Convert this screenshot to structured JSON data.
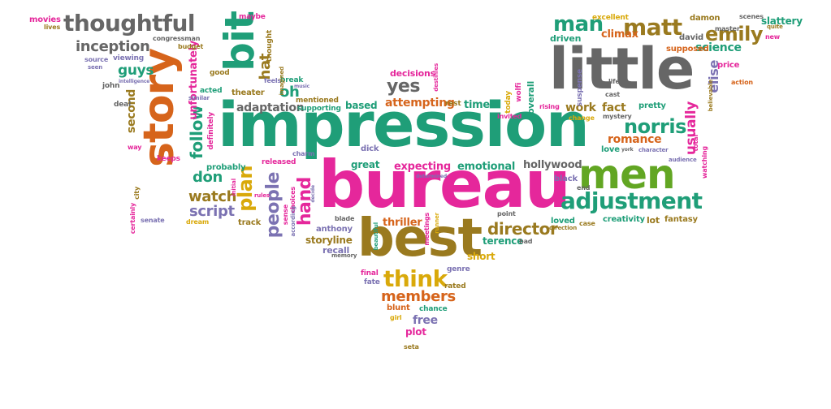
{
  "palette": {
    "green": "#1f9e78",
    "pink": "#e5279b",
    "orange": "#d6641b",
    "olive": "#9a7a1f",
    "gray": "#666666",
    "purple": "#7b72b2",
    "lime": "#62a623",
    "gold": "#d9a90a"
  },
  "words": [
    {
      "text": "impression",
      "color": "green"
    },
    {
      "text": "bureau",
      "color": "pink"
    },
    {
      "text": "little",
      "color": "gray"
    },
    {
      "text": "best",
      "color": "olive"
    },
    {
      "text": "story",
      "color": "orange"
    },
    {
      "text": "men",
      "color": "lime"
    },
    {
      "text": "bit",
      "color": "green"
    },
    {
      "text": "thoughtful",
      "color": "gray"
    },
    {
      "text": "adjustment",
      "color": "green"
    },
    {
      "text": "think",
      "color": "gold"
    },
    {
      "text": "matt",
      "color": "olive"
    },
    {
      "text": "norris",
      "color": "green"
    },
    {
      "text": "emily",
      "color": "olive"
    },
    {
      "text": "man",
      "color": "green"
    },
    {
      "text": "inception",
      "color": "gray"
    },
    {
      "text": "plan",
      "color": "gold"
    },
    {
      "text": "people",
      "color": "purple"
    },
    {
      "text": "hand",
      "color": "pink"
    },
    {
      "text": "yes",
      "color": "gray"
    },
    {
      "text": "director",
      "color": "olive"
    },
    {
      "text": "members",
      "color": "orange"
    },
    {
      "text": "follow",
      "color": "green"
    },
    {
      "text": "guys",
      "color": "green"
    },
    {
      "text": "watch",
      "color": "olive"
    },
    {
      "text": "script",
      "color": "purple"
    },
    {
      "text": "don",
      "color": "green"
    },
    {
      "text": "second",
      "color": "olive"
    },
    {
      "text": "unfortunately",
      "color": "pink"
    },
    {
      "text": "hat",
      "color": "olive"
    },
    {
      "text": "oh",
      "color": "green"
    },
    {
      "text": "adaptation",
      "color": "gray"
    },
    {
      "text": "romance",
      "color": "orange"
    },
    {
      "text": "work",
      "color": "olive"
    },
    {
      "text": "fact",
      "color": "olive"
    },
    {
      "text": "science",
      "color": "green"
    },
    {
      "text": "elise",
      "color": "purple"
    },
    {
      "text": "usually",
      "color": "pink"
    },
    {
      "text": "attempting",
      "color": "orange"
    },
    {
      "text": "expecting",
      "color": "pink"
    },
    {
      "text": "emotional",
      "color": "green"
    },
    {
      "text": "hollywood",
      "color": "gray"
    },
    {
      "text": "storyline",
      "color": "olive"
    },
    {
      "text": "terence",
      "color": "green"
    },
    {
      "text": "thriller",
      "color": "orange"
    },
    {
      "text": "short",
      "color": "gold"
    },
    {
      "text": "free",
      "color": "purple"
    },
    {
      "text": "plot",
      "color": "pink"
    },
    {
      "text": "recall",
      "color": "purple"
    },
    {
      "text": "climax",
      "color": "orange"
    },
    {
      "text": "david",
      "color": "gray"
    },
    {
      "text": "love",
      "color": "green"
    },
    {
      "text": "pretty",
      "color": "green"
    },
    {
      "text": "based",
      "color": "green"
    },
    {
      "text": "time",
      "color": "green"
    },
    {
      "text": "decisions",
      "color": "pink"
    },
    {
      "text": "great",
      "color": "green"
    },
    {
      "text": "lot",
      "color": "olive"
    },
    {
      "text": "fantasy",
      "color": "olive"
    },
    {
      "text": "creativity",
      "color": "green"
    },
    {
      "text": "loved",
      "color": "green"
    },
    {
      "text": "probably",
      "color": "green"
    },
    {
      "text": "track",
      "color": "olive"
    },
    {
      "text": "anthony",
      "color": "purple"
    },
    {
      "text": "overall",
      "color": "green"
    },
    {
      "text": "supposed",
      "color": "orange"
    },
    {
      "text": "driven",
      "color": "green"
    },
    {
      "text": "price",
      "color": "pink"
    },
    {
      "text": "slattery",
      "color": "green"
    },
    {
      "text": "damon",
      "color": "olive"
    },
    {
      "text": "excellent",
      "color": "gold"
    },
    {
      "text": "movies",
      "color": "pink"
    },
    {
      "text": "maybe",
      "color": "pink"
    },
    {
      "text": "congressman",
      "color": "gray"
    },
    {
      "text": "budget",
      "color": "olive"
    },
    {
      "text": "viewing",
      "color": "purple"
    },
    {
      "text": "source",
      "color": "purple"
    },
    {
      "text": "good",
      "color": "olive"
    },
    {
      "text": "theater",
      "color": "olive"
    },
    {
      "text": "mentioned",
      "color": "olive"
    },
    {
      "text": "supporting",
      "color": "green"
    },
    {
      "text": "released",
      "color": "pink"
    },
    {
      "text": "dick",
      "color": "purple"
    },
    {
      "text": "black",
      "color": "purple"
    },
    {
      "text": "genre",
      "color": "purple"
    },
    {
      "text": "final",
      "color": "pink"
    },
    {
      "text": "fate",
      "color": "purple"
    },
    {
      "text": "rated",
      "color": "olive"
    },
    {
      "text": "blunt",
      "color": "orange"
    },
    {
      "text": "chance",
      "color": "green"
    },
    {
      "text": "girl",
      "color": "gold"
    },
    {
      "text": "seta",
      "color": "olive"
    },
    {
      "text": "john",
      "color": "gray"
    },
    {
      "text": "deal",
      "color": "gray"
    },
    {
      "text": "way",
      "color": "pink"
    },
    {
      "text": "keeps",
      "color": "pink"
    },
    {
      "text": "city",
      "color": "olive"
    },
    {
      "text": "certainly",
      "color": "pink"
    },
    {
      "text": "senate",
      "color": "purple"
    },
    {
      "text": "dream",
      "color": "gold"
    },
    {
      "text": "feels",
      "color": "purple"
    },
    {
      "text": "break",
      "color": "green"
    },
    {
      "text": "thought",
      "color": "olive"
    },
    {
      "text": "imagined",
      "color": "olive"
    },
    {
      "text": "acted",
      "color": "green"
    },
    {
      "text": "charm",
      "color": "purple"
    },
    {
      "text": "mystery",
      "color": "gray"
    },
    {
      "text": "character",
      "color": "purple"
    },
    {
      "text": "audience",
      "color": "purple"
    },
    {
      "text": "change",
      "color": "gold"
    },
    {
      "text": "rising",
      "color": "pink"
    },
    {
      "text": "suspense",
      "color": "purple"
    },
    {
      "text": "cast",
      "color": "gray"
    },
    {
      "text": "life",
      "color": "gray"
    },
    {
      "text": "total",
      "color": "pink"
    },
    {
      "text": "watching",
      "color": "pink"
    },
    {
      "text": "believable",
      "color": "olive"
    },
    {
      "text": "action",
      "color": "orange"
    },
    {
      "text": "master",
      "color": "gray"
    },
    {
      "text": "scenes",
      "color": "gray"
    },
    {
      "text": "quite",
      "color": "olive"
    },
    {
      "text": "new",
      "color": "pink"
    },
    {
      "text": "invited",
      "color": "pink"
    },
    {
      "text": "today",
      "color": "gold"
    },
    {
      "text": "wolfi",
      "color": "pink"
    },
    {
      "text": "end",
      "color": "gray"
    },
    {
      "text": "point",
      "color": "gray"
    },
    {
      "text": "case",
      "color": "olive"
    },
    {
      "text": "direction",
      "color": "olive"
    },
    {
      "text": "bad",
      "color": "gray"
    },
    {
      "text": "blade",
      "color": "gray"
    },
    {
      "text": "sense",
      "color": "pink"
    },
    {
      "text": "choices",
      "color": "pink"
    },
    {
      "text": "according",
      "color": "purple"
    },
    {
      "text": "memory",
      "color": "gray"
    },
    {
      "text": "beautiful",
      "color": "green"
    },
    {
      "text": "runner",
      "color": "gold"
    },
    {
      "text": "meetings",
      "color": "pink"
    },
    {
      "text": "determined",
      "color": "purple"
    },
    {
      "text": "rest",
      "color": "olive"
    },
    {
      "text": "lives",
      "color": "olive"
    },
    {
      "text": "seen",
      "color": "purple"
    },
    {
      "text": "similar",
      "color": "purple"
    },
    {
      "text": "intelligence",
      "color": "purple"
    },
    {
      "text": "definitely",
      "color": "pink"
    },
    {
      "text": "music",
      "color": "purple"
    },
    {
      "text": "destinies",
      "color": "pink"
    },
    {
      "text": "initial",
      "color": "pink"
    },
    {
      "text": "york",
      "color": "gray"
    },
    {
      "text": "rules",
      "color": "pink"
    },
    {
      "text": "decide",
      "color": "purple"
    },
    {
      "text": "emily",
      "color": "olive"
    }
  ]
}
